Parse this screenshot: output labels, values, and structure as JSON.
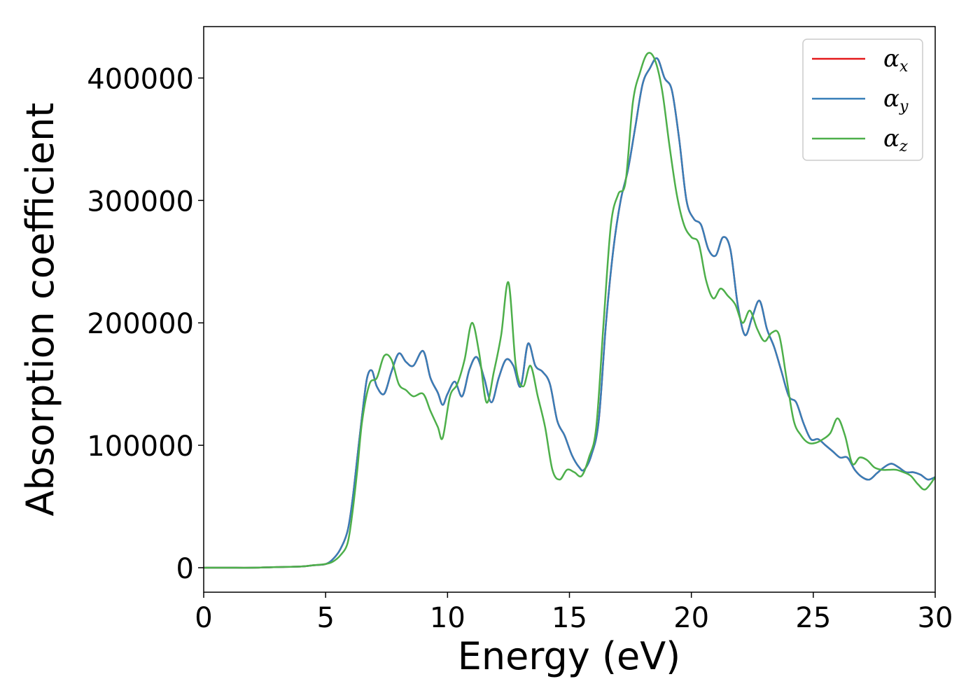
{
  "chart_data": {
    "type": "line",
    "title": "",
    "xlabel": "Energy (eV)",
    "ylabel": "Absorption coefficient",
    "xlim": [
      0,
      30
    ],
    "ylim": [
      -20000,
      442000
    ],
    "xticks": [
      0,
      5,
      10,
      15,
      20,
      25,
      30
    ],
    "xtick_labels": [
      "0",
      "5",
      "10",
      "15",
      "20",
      "25",
      "30"
    ],
    "yticks": [
      0,
      100000,
      200000,
      300000,
      400000
    ],
    "ytick_labels": [
      "0",
      "100000",
      "200000",
      "300000",
      "400000"
    ],
    "grid": false,
    "legend_position": "top-right",
    "series": [
      {
        "name": "α",
        "subscript": "x",
        "color": "#e41a1c",
        "x": [
          0,
          1,
          2,
          3,
          4,
          4.5,
          5,
          5.3,
          5.6,
          5.9,
          6.1,
          6.3,
          6.5,
          6.7,
          6.9,
          7.1,
          7.4,
          7.7,
          8.0,
          8.3,
          8.6,
          9.0,
          9.3,
          9.6,
          9.8,
          10.0,
          10.3,
          10.6,
          10.9,
          11.2,
          11.5,
          11.8,
          12.1,
          12.4,
          12.7,
          13.0,
          13.3,
          13.6,
          13.9,
          14.2,
          14.5,
          14.8,
          15.1,
          15.4,
          15.6,
          15.9,
          16.2,
          16.5,
          16.8,
          17.1,
          17.4,
          17.7,
          18.0,
          18.3,
          18.6,
          18.9,
          19.2,
          19.5,
          19.8,
          20.1,
          20.4,
          20.7,
          21.0,
          21.3,
          21.6,
          21.9,
          22.2,
          22.5,
          22.8,
          23.1,
          23.4,
          23.7,
          24.0,
          24.3,
          24.6,
          24.9,
          25.2,
          25.5,
          25.8,
          26.1,
          26.4,
          26.7,
          27.0,
          27.3,
          27.6,
          27.9,
          28.2,
          28.5,
          28.8,
          29.1,
          29.4,
          29.7,
          30.0
        ],
        "y": [
          0,
          0,
          0,
          500,
          1000,
          2000,
          3000,
          7000,
          15000,
          30000,
          55000,
          90000,
          125000,
          155000,
          161000,
          148000,
          142000,
          160000,
          175000,
          168000,
          165000,
          177000,
          155000,
          143000,
          133000,
          142000,
          152000,
          140000,
          162000,
          172000,
          155000,
          135000,
          155000,
          170000,
          165000,
          148000,
          183000,
          165000,
          160000,
          150000,
          120000,
          108000,
          92000,
          82000,
          80000,
          92000,
          120000,
          200000,
          260000,
          300000,
          325000,
          360000,
          395000,
          408000,
          416000,
          400000,
          390000,
          350000,
          300000,
          285000,
          280000,
          260000,
          255000,
          270000,
          260000,
          215000,
          190000,
          205000,
          218000,
          195000,
          180000,
          160000,
          140000,
          135000,
          118000,
          105000,
          105000,
          100000,
          95000,
          90000,
          90000,
          80000,
          74000,
          72000,
          77000,
          82000,
          85000,
          82000,
          78000,
          78000,
          76000,
          72000,
          74000
        ]
      },
      {
        "name": "α",
        "subscript": "y",
        "color": "#377eb8",
        "x": [
          0,
          1,
          2,
          3,
          4,
          4.5,
          5,
          5.3,
          5.6,
          5.9,
          6.1,
          6.3,
          6.5,
          6.7,
          6.9,
          7.1,
          7.4,
          7.7,
          8.0,
          8.3,
          8.6,
          9.0,
          9.3,
          9.6,
          9.8,
          10.0,
          10.3,
          10.6,
          10.9,
          11.2,
          11.5,
          11.8,
          12.1,
          12.4,
          12.7,
          13.0,
          13.3,
          13.6,
          13.9,
          14.2,
          14.5,
          14.8,
          15.1,
          15.4,
          15.6,
          15.9,
          16.2,
          16.5,
          16.8,
          17.1,
          17.4,
          17.7,
          18.0,
          18.3,
          18.6,
          18.9,
          19.2,
          19.5,
          19.8,
          20.1,
          20.4,
          20.7,
          21.0,
          21.3,
          21.6,
          21.9,
          22.2,
          22.5,
          22.8,
          23.1,
          23.4,
          23.7,
          24.0,
          24.3,
          24.6,
          24.9,
          25.2,
          25.5,
          25.8,
          26.1,
          26.4,
          26.7,
          27.0,
          27.3,
          27.6,
          27.9,
          28.2,
          28.5,
          28.8,
          29.1,
          29.4,
          29.7,
          30.0
        ],
        "y": [
          0,
          0,
          0,
          500,
          1000,
          2000,
          3000,
          7000,
          15000,
          30000,
          55000,
          90000,
          125000,
          155000,
          161000,
          148000,
          142000,
          160000,
          175000,
          168000,
          165000,
          177000,
          155000,
          143000,
          133000,
          142000,
          152000,
          140000,
          162000,
          172000,
          155000,
          135000,
          155000,
          170000,
          165000,
          148000,
          183000,
          165000,
          160000,
          150000,
          120000,
          108000,
          92000,
          82000,
          80000,
          92000,
          120000,
          200000,
          260000,
          300000,
          325000,
          360000,
          395000,
          408000,
          416000,
          400000,
          390000,
          350000,
          300000,
          285000,
          280000,
          260000,
          255000,
          270000,
          260000,
          215000,
          190000,
          205000,
          218000,
          195000,
          180000,
          160000,
          140000,
          135000,
          118000,
          105000,
          105000,
          100000,
          95000,
          90000,
          90000,
          80000,
          74000,
          72000,
          77000,
          82000,
          85000,
          82000,
          78000,
          78000,
          76000,
          72000,
          74000
        ]
      },
      {
        "name": "α",
        "subscript": "z",
        "color": "#4daf4a",
        "x": [
          0,
          1,
          2,
          3,
          4,
          4.5,
          5,
          5.3,
          5.6,
          5.9,
          6.1,
          6.3,
          6.5,
          6.8,
          7.1,
          7.4,
          7.7,
          8.0,
          8.3,
          8.6,
          9.0,
          9.3,
          9.6,
          9.8,
          10.1,
          10.4,
          10.7,
          11.0,
          11.3,
          11.6,
          11.9,
          12.2,
          12.5,
          12.8,
          13.1,
          13.4,
          13.7,
          14.0,
          14.3,
          14.6,
          14.9,
          15.2,
          15.5,
          15.8,
          16.1,
          16.4,
          16.7,
          17.0,
          17.3,
          17.6,
          17.9,
          18.2,
          18.5,
          18.8,
          19.1,
          19.4,
          19.7,
          20.0,
          20.3,
          20.6,
          20.9,
          21.2,
          21.5,
          21.8,
          22.1,
          22.4,
          22.7,
          23.0,
          23.3,
          23.6,
          23.9,
          24.2,
          24.5,
          24.8,
          25.1,
          25.4,
          25.7,
          26.0,
          26.3,
          26.6,
          26.9,
          27.2,
          27.5,
          27.8,
          28.1,
          28.4,
          28.7,
          29.0,
          29.3,
          29.6,
          30.0
        ],
        "y": [
          0,
          0,
          0,
          500,
          1000,
          2000,
          3000,
          5000,
          10000,
          20000,
          45000,
          80000,
          120000,
          150000,
          155000,
          173000,
          170000,
          150000,
          145000,
          140000,
          142000,
          128000,
          115000,
          106000,
          140000,
          150000,
          170000,
          200000,
          175000,
          135000,
          160000,
          190000,
          233000,
          165000,
          148000,
          165000,
          140000,
          115000,
          80000,
          72000,
          80000,
          78000,
          75000,
          90000,
          115000,
          200000,
          280000,
          305000,
          315000,
          380000,
          405000,
          420000,
          415000,
          390000,
          345000,
          305000,
          280000,
          270000,
          265000,
          235000,
          220000,
          228000,
          222000,
          215000,
          200000,
          210000,
          195000,
          185000,
          192000,
          190000,
          155000,
          120000,
          108000,
          102000,
          102000,
          105000,
          110000,
          122000,
          108000,
          85000,
          90000,
          88000,
          82000,
          80000,
          80000,
          80000,
          78000,
          75000,
          68000,
          64000,
          74000
        ]
      }
    ]
  }
}
